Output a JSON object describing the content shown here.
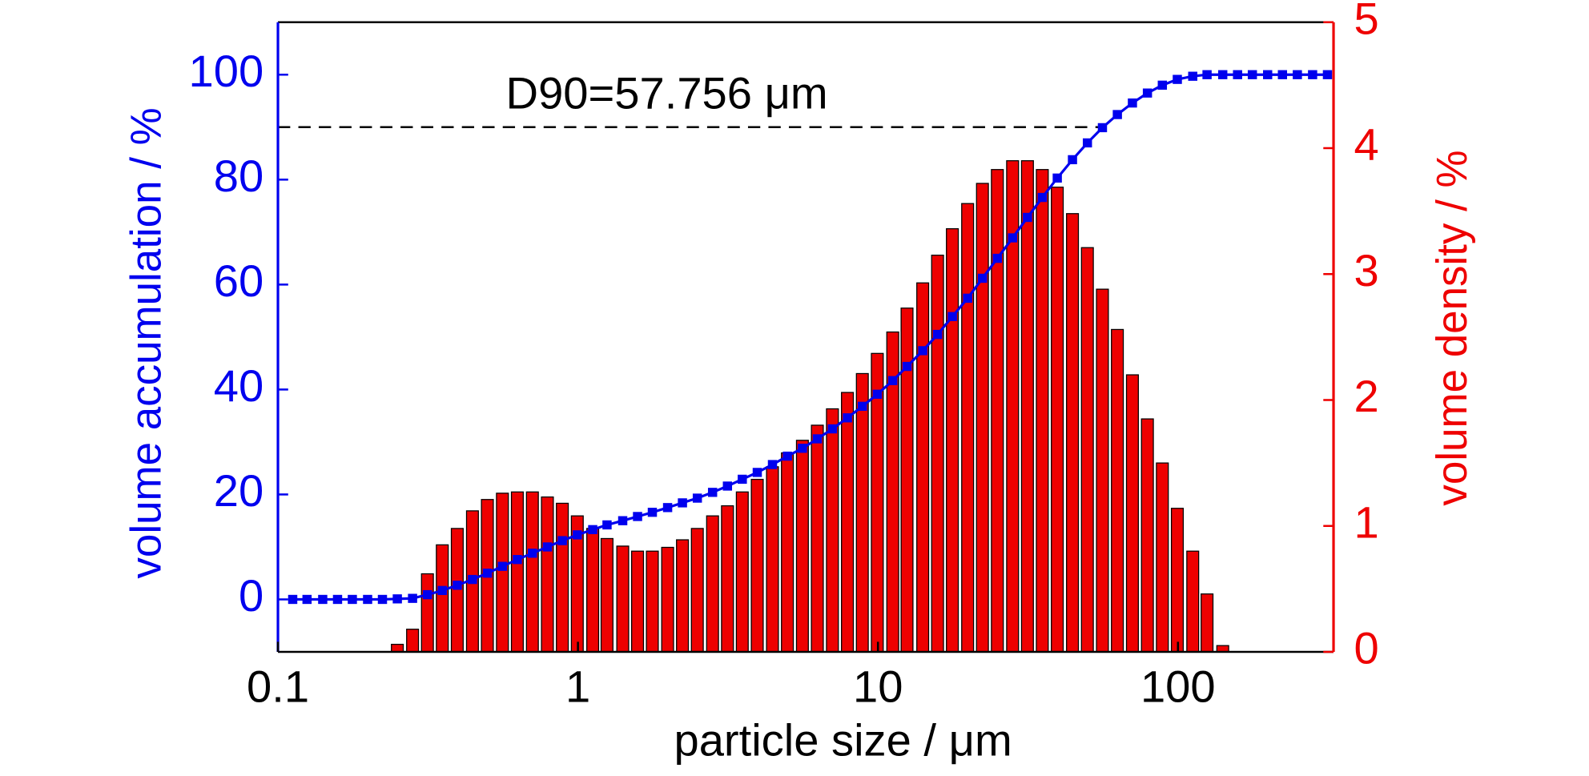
{
  "chart_data": {
    "type": "bar-line",
    "xlabel": "particle size / μm",
    "ylabel": "volume accumulation / %",
    "y2label": "volume density / %",
    "xscale": "log",
    "xlim": [
      0.1,
      330
    ],
    "xticks": [
      0.1,
      1,
      10,
      100
    ],
    "ylim": [
      -10,
      110
    ],
    "yticks": [
      0,
      20,
      40,
      60,
      80,
      100
    ],
    "y2lim": [
      0,
      5
    ],
    "y2ticks": [
      0,
      1,
      2,
      3,
      4,
      5
    ],
    "ycolor": "#0000ee",
    "y2color": "#ee0000",
    "annotation": {
      "label": "D90=57.756 μm",
      "x": 57.756,
      "y": 90
    },
    "series": [
      {
        "type": "bar",
        "axis": "y2",
        "color": "#ee0000",
        "x": [
          0.25,
          0.281,
          0.315,
          0.353,
          0.396,
          0.445,
          0.499,
          0.56,
          0.628,
          0.705,
          0.791,
          0.887,
          0.995,
          1.12,
          1.25,
          1.41,
          1.58,
          1.77,
          1.99,
          2.23,
          2.5,
          2.81,
          3.15,
          3.53,
          3.96,
          4.45,
          4.99,
          5.6,
          6.28,
          7.05,
          7.91,
          8.87,
          9.95,
          11.2,
          12.5,
          14.1,
          15.8,
          17.7,
          19.9,
          22.3,
          25.0,
          28.1,
          31.5,
          35.3,
          39.6,
          44.5,
          49.9,
          56.0,
          62.8,
          70.5,
          79.1,
          88.7,
          99.5,
          112,
          125,
          141
        ],
        "values": [
          0.06,
          0.18,
          0.62,
          0.85,
          0.98,
          1.12,
          1.21,
          1.26,
          1.27,
          1.27,
          1.23,
          1.18,
          1.08,
          0.98,
          0.9,
          0.84,
          0.8,
          0.8,
          0.83,
          0.89,
          0.98,
          1.08,
          1.16,
          1.27,
          1.37,
          1.47,
          1.58,
          1.68,
          1.8,
          1.93,
          2.06,
          2.21,
          2.37,
          2.54,
          2.73,
          2.93,
          3.15,
          3.36,
          3.56,
          3.72,
          3.83,
          3.9,
          3.9,
          3.83,
          3.69,
          3.48,
          3.21,
          2.88,
          2.56,
          2.2,
          1.85,
          1.5,
          1.14,
          0.8,
          0.46,
          0.05
        ]
      },
      {
        "type": "line",
        "axis": "y",
        "color": "#0000ee",
        "x": [
          0.112,
          0.125,
          0.141,
          0.158,
          0.177,
          0.199,
          0.223,
          0.25,
          0.281,
          0.315,
          0.353,
          0.396,
          0.445,
          0.499,
          0.56,
          0.628,
          0.705,
          0.791,
          0.887,
          0.995,
          1.12,
          1.25,
          1.41,
          1.58,
          1.77,
          1.99,
          2.23,
          2.5,
          2.81,
          3.15,
          3.53,
          3.96,
          4.45,
          4.99,
          5.6,
          6.28,
          7.05,
          7.91,
          8.87,
          9.95,
          11.2,
          12.5,
          14.1,
          15.8,
          17.7,
          19.9,
          22.3,
          25.0,
          28.1,
          31.5,
          35.3,
          39.6,
          44.5,
          49.9,
          56.0,
          62.8,
          70.5,
          79.1,
          88.7,
          99.5,
          112,
          125,
          141,
          158,
          177,
          199,
          223,
          250,
          281,
          315
        ],
        "values": [
          0,
          0,
          0,
          0,
          0,
          0,
          0,
          0.1,
          0.2,
          0.9,
          1.7,
          2.7,
          3.8,
          5.0,
          6.3,
          7.6,
          8.8,
          10.0,
          11.2,
          12.3,
          13.3,
          14.2,
          15.0,
          15.8,
          16.6,
          17.5,
          18.4,
          19.3,
          20.4,
          21.6,
          22.9,
          24.2,
          25.7,
          27.3,
          28.8,
          30.6,
          32.5,
          34.6,
          36.8,
          39.1,
          41.7,
          44.4,
          47.4,
          50.5,
          53.9,
          57.4,
          61.2,
          65.0,
          68.9,
          72.8,
          76.6,
          80.3,
          83.8,
          87.0,
          89.9,
          92.4,
          94.6,
          96.5,
          98.0,
          99.1,
          99.7,
          100,
          100,
          100,
          100,
          100,
          100,
          100,
          100,
          100
        ]
      }
    ]
  }
}
